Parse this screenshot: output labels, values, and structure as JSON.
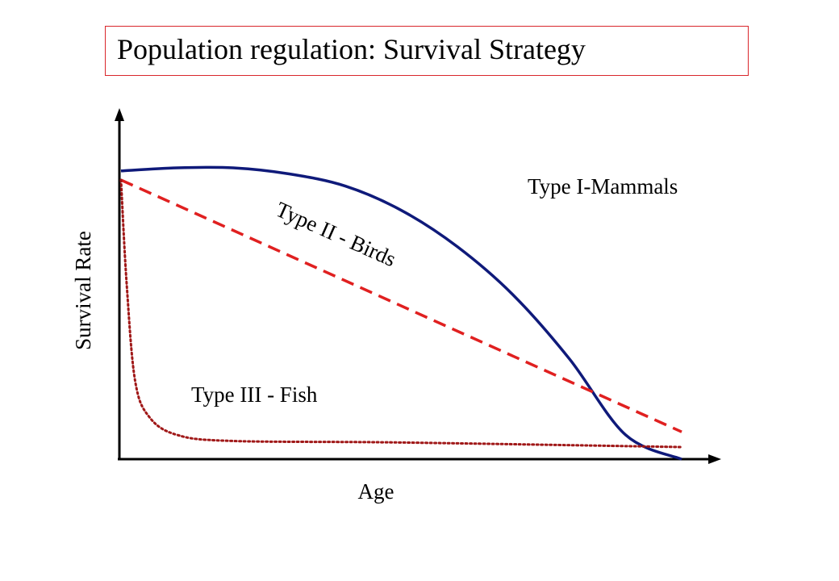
{
  "title": "Population regulation: Survival Strategy",
  "chart_data": {
    "type": "line",
    "xlabel": "Age",
    "ylabel": "Survival Rate",
    "series": [
      {
        "name": "Type I-Mammals",
        "color": "#0f1a7a",
        "style": "solid",
        "points": [
          [
            0,
            0.97
          ],
          [
            0.1,
            0.98
          ],
          [
            0.2,
            0.98
          ],
          [
            0.3,
            0.96
          ],
          [
            0.4,
            0.92
          ],
          [
            0.5,
            0.84
          ],
          [
            0.6,
            0.72
          ],
          [
            0.7,
            0.56
          ],
          [
            0.8,
            0.35
          ],
          [
            0.9,
            0.1
          ],
          [
            1,
            0.02
          ]
        ]
      },
      {
        "name": "Type II - Birds",
        "color": "#e02020",
        "style": "dashed",
        "points": [
          [
            0,
            0.94
          ],
          [
            1,
            0.11
          ]
        ]
      },
      {
        "name": "Type III - Fish",
        "color": "#a01818",
        "style": "dotted",
        "points": [
          [
            0,
            0.94
          ],
          [
            0.01,
            0.6
          ],
          [
            0.025,
            0.28
          ],
          [
            0.05,
            0.16
          ],
          [
            0.1,
            0.1
          ],
          [
            0.2,
            0.08
          ],
          [
            0.5,
            0.075
          ],
          [
            1,
            0.06
          ]
        ]
      }
    ],
    "line_labels": {
      "type1": "Type I-Mammals",
      "type2": "Type II - Birds",
      "type3": "Type III - Fish"
    }
  }
}
